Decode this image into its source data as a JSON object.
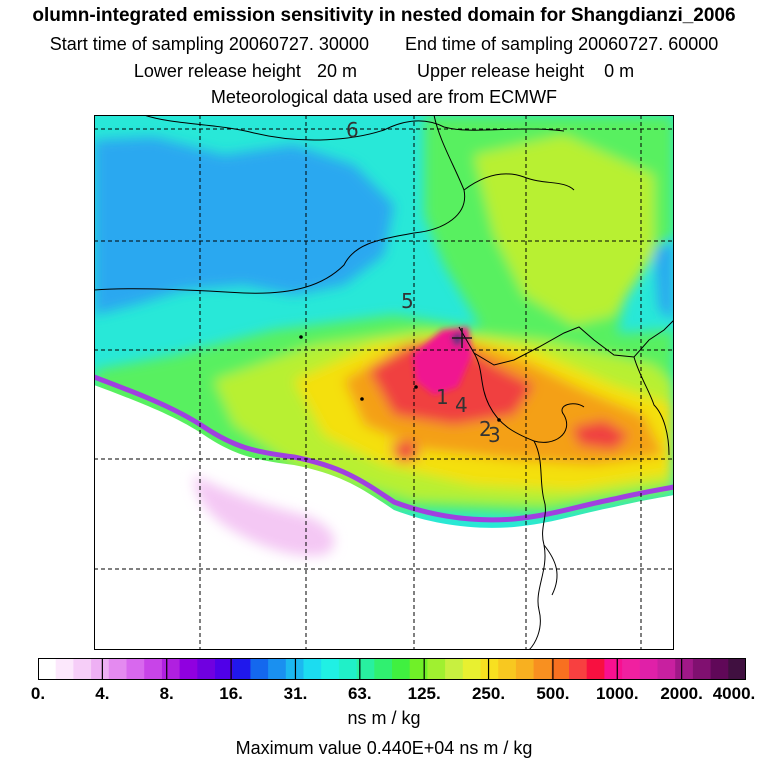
{
  "header": {
    "title": "olumn-integrated emission sensitivity in nested domain for Shangdianzi_2006",
    "start_label": "Start time of sampling",
    "start_value": "20060727. 30000",
    "end_label": "End time of sampling",
    "end_value": "20060727. 60000",
    "lower_label": "Lower release height",
    "lower_value": "20 m",
    "upper_label": "Upper release height",
    "upper_value": "0 m",
    "met_source": "Meteorological data used are from ECMWF"
  },
  "map": {
    "labels": [
      "6",
      "5",
      "1",
      "4",
      "2",
      "3"
    ],
    "colors": {
      "background": "#28e8d8",
      "blue_low": "#2aa8f0",
      "cyan": "#22ecdc",
      "green": "#58f060",
      "yellowgreen": "#b8f030",
      "yellow": "#f4e010",
      "orange": "#f4a018",
      "red": "#f04040",
      "magenta": "#f01890",
      "purple": "#a040e0",
      "darkpurple": "#603080"
    }
  },
  "legend": {
    "tick_labels": [
      "0.",
      "4.",
      "8.",
      "16.",
      "31.",
      "63.",
      "125.",
      "250.",
      "500.",
      "1000.",
      "2000.",
      "4000."
    ],
    "colors": [
      "#ffffff",
      "#fce8fc",
      "#f6cef8",
      "#eeb0f4",
      "#e48af0",
      "#d868ee",
      "#c844e8",
      "#b020e0",
      "#9000e0",
      "#7000e0",
      "#5000e8",
      "#2018ec",
      "#1468ee",
      "#1a90f0",
      "#1cb8f0",
      "#1cdcf0",
      "#20f0e4",
      "#20f0c8",
      "#28f0a0",
      "#30f070",
      "#40f040",
      "#70f028",
      "#a0f030",
      "#c8f040",
      "#e8f030",
      "#f8e020",
      "#f8c820",
      "#f8b020",
      "#f89020",
      "#f87020",
      "#f84040",
      "#f81040",
      "#f81090",
      "#f020a0",
      "#e020a8",
      "#c820a0",
      "#a01888",
      "#801070",
      "#600858",
      "#401040"
    ],
    "units": "ns m / kg",
    "max_label": "Maximum value",
    "max_value": "0.440E+04",
    "max_units": "ns m / kg"
  }
}
